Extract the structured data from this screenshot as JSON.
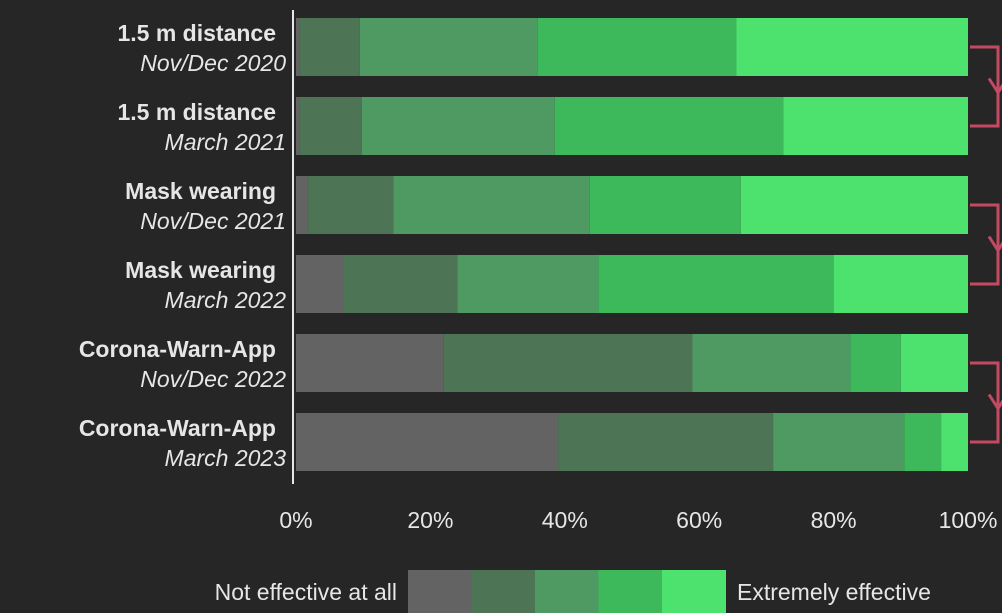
{
  "chart_data": {
    "type": "bar",
    "orientation": "horizontal",
    "stacked": true,
    "categories": [
      {
        "name": "1.5 m distance",
        "period": "Nov/Dec 2020"
      },
      {
        "name": "1.5 m distance",
        "period": "March 2021"
      },
      {
        "name": "Mask wearing",
        "period": "Nov/Dec 2021"
      },
      {
        "name": "Mask wearing",
        "period": "March 2022"
      },
      {
        "name": "Corona-Warn-App",
        "period": "Nov/Dec 2022"
      },
      {
        "name": "Corona-Warn-App",
        "period": "March 2023"
      }
    ],
    "series": [
      {
        "color": "#636363",
        "values": [
          0.5,
          0.5,
          1.8,
          7.0,
          22.0,
          39.0
        ]
      },
      {
        "color": "#4d7455",
        "values": [
          9.0,
          9.3,
          12.7,
          17.0,
          37.0,
          32.0
        ]
      },
      {
        "color": "#4f9a63",
        "values": [
          26.5,
          28.7,
          29.2,
          21.0,
          23.5,
          19.5
        ]
      },
      {
        "color": "#3db85a",
        "values": [
          29.5,
          34.0,
          22.5,
          35.0,
          7.5,
          5.5
        ]
      },
      {
        "color": "#4de26d",
        "values": [
          34.5,
          27.5,
          33.8,
          20.0,
          10.0,
          4.0
        ]
      }
    ],
    "xlim": [
      0,
      100
    ],
    "x_ticks": [
      "0%",
      "20%",
      "40%",
      "60%",
      "80%",
      "100%"
    ],
    "legend": {
      "low_label": "Not effective at all",
      "high_label": "Extremely effective",
      "placement": "bottom"
    },
    "bracket_color": "#c44a63"
  }
}
